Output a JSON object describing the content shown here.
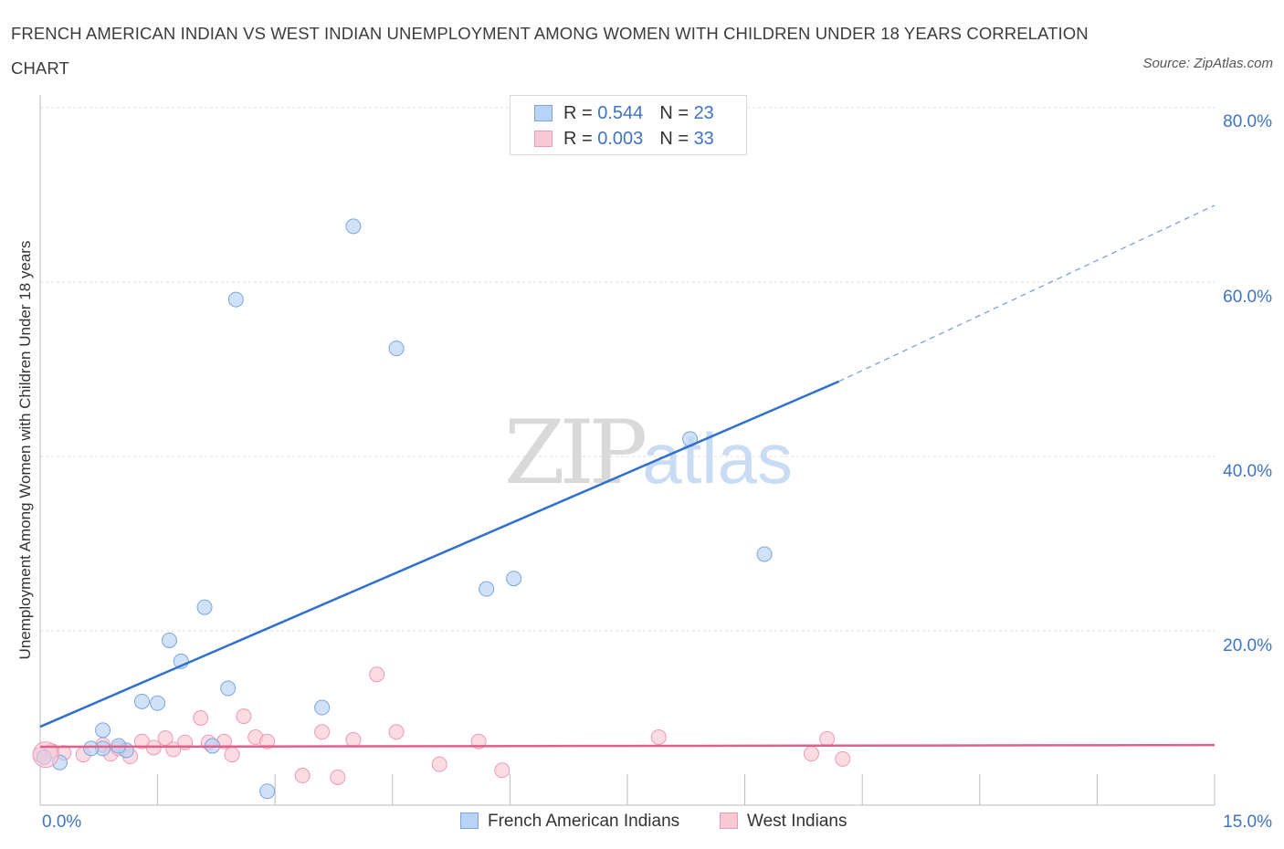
{
  "title": "FRENCH AMERICAN INDIAN VS WEST INDIAN UNEMPLOYMENT AMONG WOMEN WITH CHILDREN UNDER 18 YEARS CORRELATION CHART",
  "source": "Source: ZipAtlas.com",
  "watermark": {
    "zip": "ZIP",
    "atlas": "atlas"
  },
  "legend": {
    "rows": [
      {
        "r_label": "R =",
        "r_value": "0.544",
        "n_label": "N =",
        "n_value": "23"
      },
      {
        "r_label": "R =",
        "r_value": "0.003",
        "n_label": "N =",
        "n_value": "33"
      }
    ]
  },
  "colors": {
    "series1_fill": "#b8d3f5",
    "series1_stroke": "#7aa6e0",
    "series1_line": "#2f6fcf",
    "series2_fill": "#f9c8d6",
    "series2_stroke": "#ee9ab3",
    "series2_line": "#e0608a",
    "tick": "#3f73c6"
  },
  "chart_data": {
    "type": "scatter",
    "title": "FRENCH AMERICAN INDIAN VS WEST INDIAN UNEMPLOYMENT AMONG WOMEN WITH CHILDREN UNDER 18 YEARS CORRELATION CHART",
    "xlabel": "",
    "ylabel": "Unemployment Among Women with Children Under 18 years",
    "xlim": [
      0,
      15
    ],
    "ylim": [
      0,
      80
    ],
    "x_tick_labels": [
      "0.0%",
      "15.0%"
    ],
    "y_tick_labels": [
      "20.0%",
      "40.0%",
      "60.0%",
      "80.0%"
    ],
    "y_ticks": [
      20,
      40,
      60,
      80
    ],
    "grid": true,
    "legend_position": "bottom",
    "series": [
      {
        "name": "French American Indians",
        "R": 0.544,
        "N": 23,
        "points": [
          [
            0.05,
            5.5
          ],
          [
            0.25,
            4.9
          ],
          [
            0.8,
            6.5
          ],
          [
            0.65,
            6.5
          ],
          [
            0.8,
            8.6
          ],
          [
            1.1,
            6.3
          ],
          [
            1.0,
            6.8
          ],
          [
            1.3,
            11.9
          ],
          [
            1.5,
            11.7
          ],
          [
            1.65,
            18.9
          ],
          [
            1.8,
            16.5
          ],
          [
            2.1,
            22.7
          ],
          [
            2.2,
            6.8
          ],
          [
            2.4,
            13.4
          ],
          [
            2.5,
            58.0
          ],
          [
            2.9,
            1.6
          ],
          [
            3.6,
            11.2
          ],
          [
            4.0,
            66.4
          ],
          [
            4.55,
            52.4
          ],
          [
            5.7,
            24.8
          ],
          [
            6.05,
            26.0
          ],
          [
            8.3,
            42.0
          ],
          [
            9.25,
            28.8
          ]
        ],
        "trend": {
          "x0": 0.0,
          "y0": 9.0,
          "x1": 10.2,
          "y1": 48.6,
          "dash_to_x": 15.0,
          "dash_to_y": 68.8
        }
      },
      {
        "name": "West Indians",
        "R": 0.003,
        "N": 33,
        "points": [
          [
            0.0,
            5.8
          ],
          [
            0.15,
            6.2
          ],
          [
            0.3,
            6.0
          ],
          [
            0.55,
            5.8
          ],
          [
            0.8,
            6.9
          ],
          [
            0.9,
            5.9
          ],
          [
            1.0,
            6.5
          ],
          [
            1.15,
            5.6
          ],
          [
            1.3,
            7.3
          ],
          [
            1.45,
            6.6
          ],
          [
            1.6,
            7.7
          ],
          [
            1.7,
            6.4
          ],
          [
            1.85,
            7.2
          ],
          [
            2.05,
            10.0
          ],
          [
            2.15,
            7.2
          ],
          [
            2.35,
            7.3
          ],
          [
            2.45,
            5.8
          ],
          [
            2.6,
            10.2
          ],
          [
            2.75,
            7.8
          ],
          [
            2.9,
            7.3
          ],
          [
            3.35,
            3.4
          ],
          [
            3.6,
            8.4
          ],
          [
            3.8,
            3.2
          ],
          [
            4.0,
            7.5
          ],
          [
            4.3,
            15.0
          ],
          [
            4.55,
            8.4
          ],
          [
            5.1,
            4.7
          ],
          [
            5.6,
            7.3
          ],
          [
            5.9,
            4.0
          ],
          [
            7.9,
            7.8
          ],
          [
            9.85,
            5.9
          ],
          [
            10.05,
            7.6
          ],
          [
            10.25,
            5.3
          ]
        ],
        "trend": {
          "x0": 0.0,
          "y0": 6.7,
          "x1": 15.0,
          "y1": 6.9
        }
      }
    ]
  }
}
